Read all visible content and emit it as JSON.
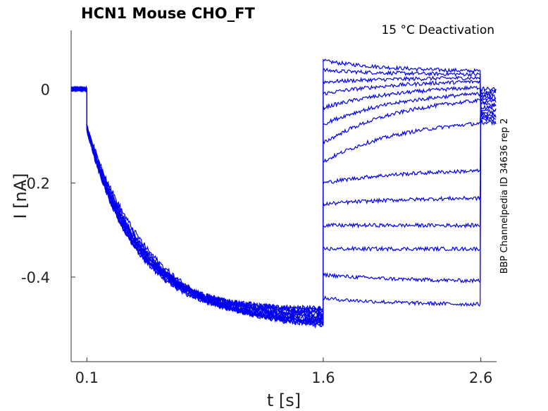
{
  "chart_data": {
    "type": "line",
    "title": "HCN1  Mouse  CHO_FT",
    "subtitle": "15 °C  Deactivation",
    "side_note": "BBP Channelpedia ID 34636 rep 2",
    "xlabel": "t [s]",
    "ylabel": "I [nA]",
    "x_ticks": [
      0.1,
      1.6,
      2.6
    ],
    "x_tick_labels": [
      "0.1",
      "1.6",
      "2.6"
    ],
    "y_ticks": [
      0,
      -0.2,
      -0.4
    ],
    "y_tick_labels": [
      "0",
      "-0.2",
      "-0.4"
    ],
    "xlim": [
      0.0,
      2.7
    ],
    "ylim": [
      -0.58,
      0.125
    ],
    "grid": false,
    "legend": "none",
    "line_color": "#0000ee",
    "protocol": {
      "hold_current": 0.0,
      "step_start": 0.1,
      "step_end": 1.6,
      "tail_end": 2.6
    },
    "activation_traces": [
      {
        "initial": -0.08,
        "final": -0.47,
        "tau": 0.29
      },
      {
        "initial": -0.08,
        "final": -0.475,
        "tau": 0.31
      },
      {
        "initial": -0.085,
        "final": -0.48,
        "tau": 0.3
      },
      {
        "initial": -0.08,
        "final": -0.485,
        "tau": 0.33
      },
      {
        "initial": -0.09,
        "final": -0.49,
        "tau": 0.32
      },
      {
        "initial": -0.08,
        "final": -0.49,
        "tau": 0.35
      },
      {
        "initial": -0.085,
        "final": -0.495,
        "tau": 0.34
      },
      {
        "initial": -0.08,
        "final": -0.5,
        "tau": 0.36
      },
      {
        "initial": -0.09,
        "final": -0.5,
        "tau": 0.37
      },
      {
        "initial": -0.08,
        "final": -0.505,
        "tau": 0.38
      },
      {
        "initial": -0.085,
        "final": -0.51,
        "tau": 0.4
      },
      {
        "initial": -0.08,
        "final": -0.515,
        "tau": 0.42
      }
    ],
    "tail_traces": [
      {
        "start": 0.06,
        "end": 0.035
      },
      {
        "start": 0.04,
        "end": 0.03
      },
      {
        "start": 0.015,
        "end": 0.025
      },
      {
        "start": -0.01,
        "end": 0.02
      },
      {
        "start": -0.04,
        "end": 0.01
      },
      {
        "start": -0.075,
        "end": 0.0
      },
      {
        "start": -0.115,
        "end": -0.01
      },
      {
        "start": -0.155,
        "end": -0.06
      },
      {
        "start": -0.2,
        "end": -0.17
      },
      {
        "start": -0.245,
        "end": -0.23
      },
      {
        "start": -0.29,
        "end": -0.29
      },
      {
        "start": -0.34,
        "end": -0.34
      },
      {
        "start": -0.395,
        "end": -0.41
      },
      {
        "start": -0.445,
        "end": -0.46
      }
    ],
    "post_tail_range": [
      -0.07,
      0.0
    ]
  }
}
